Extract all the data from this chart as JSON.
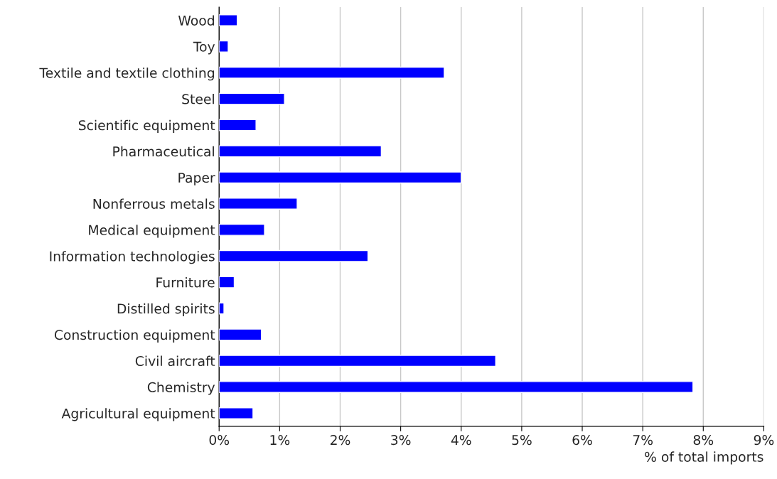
{
  "chart_data": {
    "type": "bar",
    "orientation": "horizontal",
    "xlabel": "% of total imports",
    "categories": [
      "Wood",
      "Toy",
      "Textile and textile clothing",
      "Steel",
      "Scientific equipment",
      "Pharmaceutical",
      "Paper",
      "Nonferrous metals",
      "Medical equipment",
      "Information technologies",
      "Furniture",
      "Distilled spirits",
      "Construction equipment",
      "Civil aircraft",
      "Chemistry",
      "Agricultural equipment"
    ],
    "values": [
      0.3,
      0.15,
      3.72,
      1.08,
      0.61,
      2.68,
      4.0,
      1.29,
      0.75,
      2.46,
      0.25,
      0.08,
      0.7,
      4.57,
      7.83,
      0.56
    ],
    "color": "#0000ff",
    "xlim": [
      0,
      9
    ],
    "xticks": [
      {
        "value": 0,
        "label": "0%"
      },
      {
        "value": 1,
        "label": "1%"
      },
      {
        "value": 2,
        "label": "2%"
      },
      {
        "value": 3,
        "label": "3%"
      },
      {
        "value": 4,
        "label": "4%"
      },
      {
        "value": 5,
        "label": "5%"
      },
      {
        "value": 6,
        "label": "6%"
      },
      {
        "value": 7,
        "label": "7%"
      },
      {
        "value": 8,
        "label": "8%"
      },
      {
        "value": 9,
        "label": "9%"
      }
    ],
    "grid": "x",
    "legend": false
  }
}
